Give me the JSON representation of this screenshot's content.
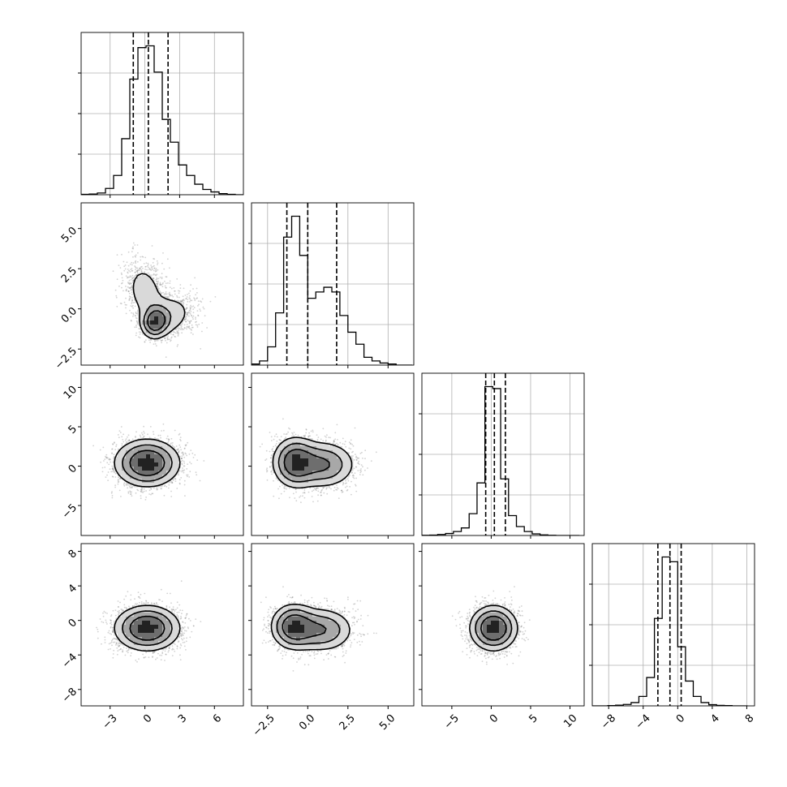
{
  "chart_data": {
    "type": "corner",
    "n_params": 4,
    "colors": {
      "ink": "#000000",
      "grid": "#b0b0b0",
      "points": "#7f7f7f"
    },
    "params": [
      {
        "range": [
          -5.5,
          8.5
        ],
        "ticks": [
          -3,
          0,
          3,
          6
        ],
        "tick_labels": [
          "−3",
          "0",
          "3",
          "6"
        ],
        "quantiles": [
          -1.0,
          0.3,
          2.0
        ],
        "sample_mean": 0.3,
        "sample_sd": 1.5
      },
      {
        "range": [
          -3.5,
          6.6
        ],
        "ticks": [
          -2.5,
          0.0,
          2.5,
          5.0
        ],
        "tick_labels": [
          "−2.5",
          "0.0",
          "2.5",
          "5.0"
        ],
        "quantiles": [
          -1.3,
          0.0,
          1.8
        ],
        "sample_mean": 0.2,
        "sample_sd": 1.2
      },
      {
        "range": [
          -8.8,
          11.8
        ],
        "ticks": [
          -5,
          0,
          5,
          10
        ],
        "tick_labels": [
          "−5",
          "0",
          "5",
          "10"
        ],
        "quantiles": [
          -0.7,
          0.4,
          1.8
        ],
        "sample_mean": 0.4,
        "sample_sd": 1.6
      },
      {
        "range": [
          -9.9,
          8.9
        ],
        "ticks": [
          -8,
          -4,
          0,
          4,
          8
        ],
        "tick_labels": [
          "−8",
          "−4",
          "0",
          "4",
          "8"
        ],
        "quantiles": [
          -2.3,
          -0.9,
          0.4
        ],
        "sample_mean": -0.9,
        "sample_sd": 1.3
      }
    ],
    "histograms": [
      {
        "edges": [
          -5.5,
          -4.8,
          -4.1,
          -3.4,
          -2.7,
          -2.0,
          -1.3,
          -0.6,
          0.1,
          0.8,
          1.5,
          2.2,
          2.9,
          3.6,
          4.3,
          5.0,
          5.7,
          6.4,
          7.1,
          7.8,
          8.5
        ],
        "counts": [
          1,
          2,
          5,
          18,
          55,
          160,
          330,
          420,
          425,
          350,
          215,
          150,
          85,
          55,
          30,
          15,
          8,
          3,
          1,
          0
        ]
      },
      {
        "edges": [
          -3.5,
          -3.0,
          -2.5,
          -2.0,
          -1.5,
          -1.0,
          -0.5,
          0.0,
          0.5,
          1.0,
          1.5,
          2.0,
          2.5,
          3.0,
          3.5,
          4.0,
          4.5,
          5.0,
          5.5,
          6.0,
          6.5
        ],
        "counts": [
          2,
          8,
          35,
          100,
          245,
          285,
          210,
          128,
          140,
          149,
          140,
          95,
          63,
          40,
          15,
          8,
          4,
          2,
          0,
          0
        ]
      },
      {
        "edges": [
          -8.8,
          -7.8,
          -6.8,
          -5.8,
          -4.8,
          -3.8,
          -2.8,
          -1.8,
          -0.8,
          0.2,
          1.2,
          2.2,
          3.2,
          4.2,
          5.2,
          6.2,
          7.2,
          8.2,
          9.2,
          10.2,
          11.2
        ],
        "counts": [
          1,
          2,
          5,
          10,
          20,
          38,
          110,
          265,
          750,
          740,
          285,
          100,
          45,
          20,
          8,
          3,
          1,
          0,
          0,
          0
        ]
      },
      {
        "edges": [
          -9.9,
          -9.0,
          -8.1,
          -7.2,
          -6.3,
          -5.4,
          -4.5,
          -3.6,
          -2.7,
          -1.8,
          -0.9,
          0.0,
          0.9,
          1.8,
          2.7,
          3.6,
          4.5,
          5.4,
          6.3,
          7.2,
          8.1
        ],
        "counts": [
          0,
          0,
          1,
          3,
          6,
          14,
          40,
          120,
          370,
          630,
          610,
          250,
          105,
          40,
          14,
          5,
          2,
          1,
          0,
          0
        ]
      }
    ],
    "pairs": [
      {
        "row": 1,
        "col": 0,
        "centers": [
          [
            0,
            1.1,
            0.9,
            1.0,
            -0.2
          ],
          [
            0.9,
            -0.8,
            0.6,
            0.5,
            0.1
          ],
          [
            2.2,
            -0.4,
            1.2,
            0.8,
            0.2
          ]
        ]
      },
      {
        "row": 2,
        "col": 0,
        "centers": [
          [
            0.2,
            0.4,
            1.4,
            1.5,
            0.0
          ]
        ]
      },
      {
        "row": 2,
        "col": 1,
        "centers": [
          [
            -0.8,
            0.5,
            0.7,
            1.6,
            0.0
          ],
          [
            1.0,
            0.2,
            1.0,
            1.5,
            0.0
          ]
        ]
      },
      {
        "row": 3,
        "col": 0,
        "centers": [
          [
            0.2,
            -0.9,
            1.4,
            1.3,
            0.0
          ]
        ]
      },
      {
        "row": 3,
        "col": 1,
        "centers": [
          [
            -0.9,
            -0.7,
            0.7,
            1.3,
            0.0
          ],
          [
            0.9,
            -1.1,
            1.0,
            1.3,
            0.0
          ]
        ]
      },
      {
        "row": 3,
        "col": 2,
        "centers": [
          [
            0.3,
            -0.9,
            1.5,
            1.3,
            0.0
          ]
        ]
      }
    ]
  }
}
